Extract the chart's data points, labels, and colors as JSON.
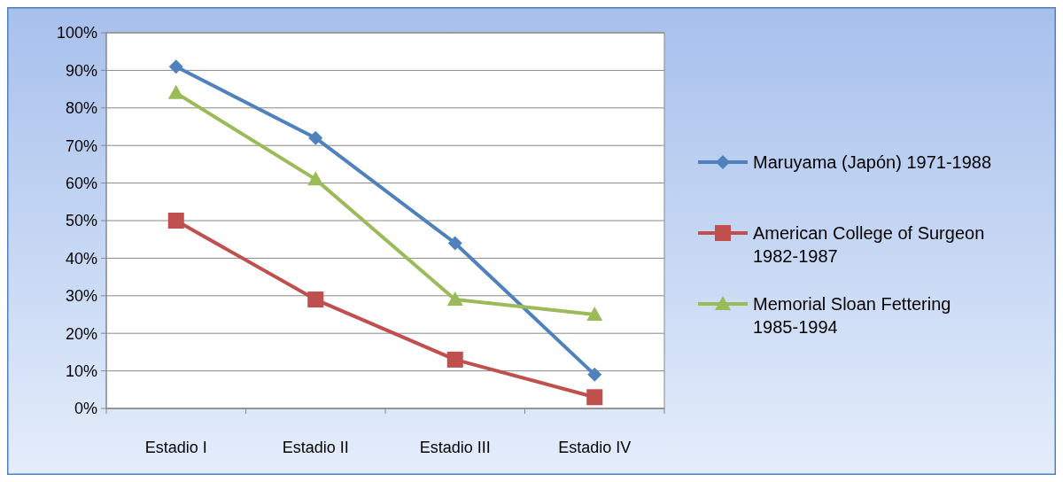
{
  "chart_data": {
    "type": "line",
    "categories": [
      "Estadio I",
      "Estadio II",
      "Estadio III",
      "Estadio IV"
    ],
    "series": [
      {
        "name": "Maruyama (Japón) 1971-1988",
        "color": "#4f81bd",
        "marker": "diamond",
        "values": [
          91,
          72,
          44,
          9
        ]
      },
      {
        "name": "American College of Surgeon 1982-1987",
        "color": "#c0504d",
        "marker": "square",
        "values": [
          50,
          29,
          13,
          3
        ]
      },
      {
        "name": "Memorial Sloan Fettering 1985-1994",
        "color": "#9bbb59",
        "marker": "triangle",
        "values": [
          84,
          61,
          29,
          25
        ]
      }
    ],
    "ylim": [
      0,
      100
    ],
    "yticks": [
      {
        "value": 0,
        "label": "0%"
      },
      {
        "value": 10,
        "label": "10%"
      },
      {
        "value": 20,
        "label": "20%"
      },
      {
        "value": 30,
        "label": "30%"
      },
      {
        "value": 40,
        "label": "40%"
      },
      {
        "value": 50,
        "label": "50%"
      },
      {
        "value": 60,
        "label": "60%"
      },
      {
        "value": 70,
        "label": "70%"
      },
      {
        "value": 80,
        "label": "80%"
      },
      {
        "value": 90,
        "label": "90%"
      },
      {
        "value": 100,
        "label": "100%"
      }
    ],
    "grid": "y",
    "legend": "right",
    "line_style": "solid"
  }
}
